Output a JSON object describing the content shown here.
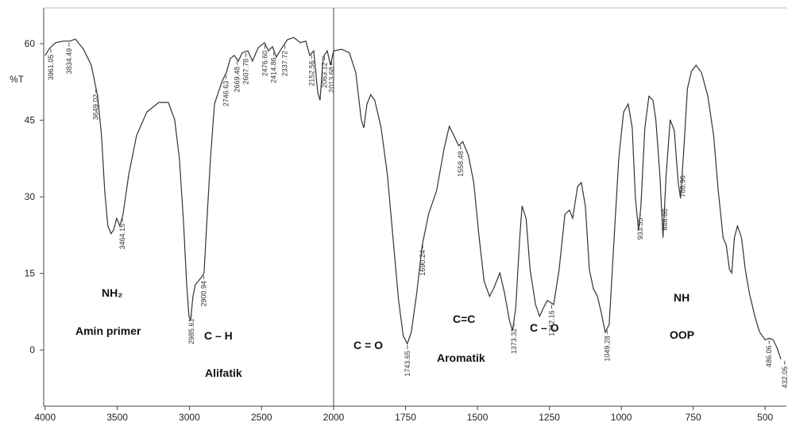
{
  "chart_data": [
    {
      "type": "line",
      "ylabel": "%T",
      "color": "#333333",
      "xlim": [
        4010,
        2000
      ],
      "xticks": [
        4000,
        3500,
        3000,
        2500
      ],
      "ylim": [
        -11,
        67
      ],
      "yticks": [
        0,
        15,
        30,
        45,
        60
      ],
      "x": [
        4000,
        3972,
        3928,
        3873,
        3829,
        3791,
        3736,
        3680,
        3636,
        3609,
        3587,
        3565,
        3543,
        3526,
        3504,
        3482,
        3460,
        3421,
        3366,
        3295,
        3212,
        3146,
        3102,
        3069,
        3041,
        3019,
        3003,
        2992,
        2975,
        2959,
        2937,
        2915,
        2898,
        2882,
        2854,
        2826,
        2799,
        2771,
        2744,
        2716,
        2689,
        2661,
        2634,
        2595,
        2562,
        2523,
        2479,
        2452,
        2424,
        2397,
        2358,
        2320,
        2276,
        2231,
        2193,
        2165,
        2138,
        2110,
        2094,
        2072,
        2044,
        2022,
        2000
      ],
      "values": [
        57.7,
        59,
        60.2,
        60.5,
        60.5,
        60.9,
        59,
        55.8,
        49.7,
        42,
        31.2,
        24.3,
        22.8,
        23.5,
        25.8,
        24.3,
        26.6,
        34.3,
        42,
        46.6,
        48.5,
        48.5,
        45.1,
        37.4,
        25.1,
        12.8,
        6.6,
        5.8,
        10.5,
        12.8,
        13.5,
        14.3,
        15.1,
        23.5,
        37.4,
        48.2,
        50.5,
        52.8,
        54.3,
        57.1,
        57.7,
        56.6,
        58.2,
        58.6,
        56.6,
        59.2,
        60.2,
        58.6,
        59.4,
        57.4,
        59.2,
        60.8,
        61.2,
        60.2,
        60.5,
        57.7,
        58.6,
        50.5,
        48.9,
        57.4,
        58.6,
        55.8,
        58.6
      ],
      "peaks": [
        3961.05,
        3834.49,
        3649.02,
        3464.15,
        2985.61,
        2900.94,
        2746.63,
        2669.48,
        2607.78,
        {
          "value": 2476.6,
          "label": "2476.60"
        },
        2414.86,
        2337.72,
        2152.56,
        2063.12,
        2013.68
      ],
      "annotations": [
        "NH₂",
        "Amin primer",
        "C – H",
        "Alifatik"
      ]
    },
    {
      "type": "line",
      "color": "#333333",
      "xlim": [
        2000,
        426
      ],
      "xticks": [
        2000,
        1750,
        1500,
        1250,
        1000,
        750,
        500
      ],
      "ylim": [
        -11,
        67
      ],
      "x": [
        2000,
        1972,
        1945,
        1923,
        1904,
        1895,
        1884,
        1871,
        1857,
        1835,
        1813,
        1794,
        1774,
        1758,
        1744,
        1730,
        1711,
        1692,
        1670,
        1642,
        1615,
        1598,
        1582,
        1565,
        1551,
        1532,
        1513,
        1494,
        1477,
        1458,
        1444,
        1422,
        1406,
        1389,
        1378,
        1367,
        1353,
        1345,
        1331,
        1317,
        1298,
        1284,
        1271,
        1257,
        1235,
        1216,
        1196,
        1180,
        1169,
        1152,
        1139,
        1125,
        1111,
        1097,
        1083,
        1070,
        1056,
        1042,
        1028,
        1009,
        992,
        976,
        962,
        951,
        940,
        932,
        918,
        904,
        890,
        880,
        866,
        855,
        844,
        830,
        816,
        802,
        794,
        783,
        770,
        756,
        740,
        721,
        699,
        679,
        663,
        646,
        635,
        624,
        616,
        607,
        596,
        582,
        569,
        555,
        536,
        519,
        500,
        486,
        472,
        459,
        445
      ],
      "values": [
        58.6,
        58.9,
        58.2,
        54.3,
        45.1,
        43.5,
        48.2,
        50,
        48.9,
        43.5,
        34.3,
        22.2,
        9.7,
        2.8,
        1.2,
        3.5,
        11.2,
        20.5,
        26.6,
        31.2,
        39.7,
        43.8,
        42,
        40,
        40.8,
        38.2,
        32.8,
        22,
        13.5,
        10.5,
        12,
        15.1,
        11.2,
        5.8,
        3.8,
        8.2,
        22,
        28.2,
        25.8,
        15.8,
        8.9,
        6.6,
        8.2,
        9.7,
        8.9,
        15.8,
        26.6,
        27.4,
        25.8,
        32,
        32.8,
        28.2,
        15.8,
        12,
        10.5,
        7.4,
        3.5,
        5,
        18.9,
        37.4,
        46.6,
        48.2,
        43.5,
        29.7,
        23.5,
        28.2,
        43.5,
        49.7,
        48.9,
        45.1,
        34.3,
        22,
        34.3,
        45.1,
        43,
        32.8,
        29.7,
        38.9,
        51.2,
        54.6,
        55.8,
        54.3,
        49.7,
        42,
        31.2,
        22,
        20.5,
        15.8,
        15.1,
        22,
        24.3,
        22,
        15.8,
        11.2,
        6.6,
        3.5,
        2,
        2.3,
        2,
        0.5,
        -1.8
      ],
      "peaks": [
        1690.24,
        1558.48,
        1743.65,
        1373.32,
        1242.16,
        1049.28,
        933.55,
        848.68,
        786.96,
        486.06,
        432.05
      ],
      "annotations": [
        "C = O",
        "C=C",
        "Aromatik",
        "C – O",
        "NH",
        "OOP"
      ]
    }
  ]
}
